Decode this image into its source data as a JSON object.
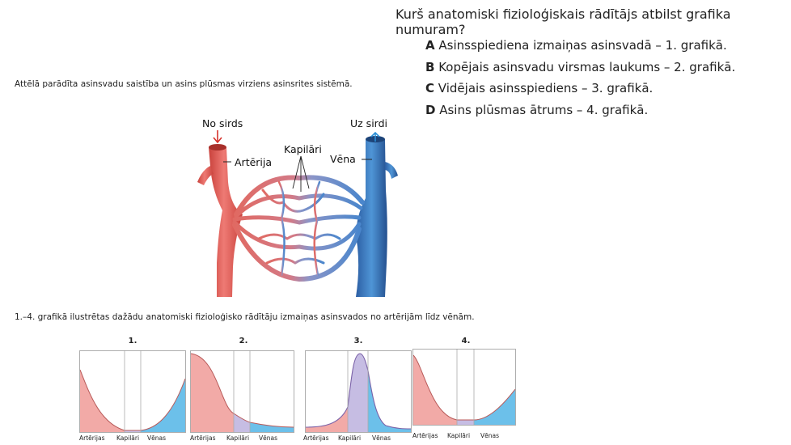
{
  "question": "Kurš anatomiski fizioloģiskais rādītājs atbilst grafika numuram?",
  "answers": [
    {
      "letter": "A",
      "text": "Asinsspiediena izmaiņas asinsvadā – 1. grafikā."
    },
    {
      "letter": "B",
      "text": "Kopējais asinsvadu virsmas laukums – 2. grafikā."
    },
    {
      "letter": "C",
      "text": "Vidējais asinsspiediens – 3. grafikā."
    },
    {
      "letter": "D",
      "text": "Asins plūsmas ātrums – 4. grafikā."
    }
  ],
  "intro": "Attēlā parādīta asinsvadu saistība un asins plūsmas virziens asinsrites sistēmā.",
  "diagram": {
    "from_heart": "No sirds",
    "to_heart": "Uz sirdi",
    "artery": "Artērija",
    "capillaries": "Kapilāri",
    "vein": "Vēna"
  },
  "caption": "1.–4. grafikā ilustrētas dažādu anatomiski fizioloģisko rādītāju izmaiņas asinsvados no artērijām līdz vēnām.",
  "colors": {
    "artery": "#e8827e",
    "artery_fill": "#f2aaa7",
    "capillary_fill": "#c6bde3",
    "vein": "#3f86c9",
    "vein_fill": "#6cc0ea"
  },
  "charts": [
    {
      "number": "1.",
      "labels": [
        "Artērijas",
        "Kapilāri",
        "Vēnas"
      ]
    },
    {
      "number": "2.",
      "labels": [
        "Artērijas",
        "Kapilāri",
        "Vēnas"
      ]
    },
    {
      "number": "3.",
      "labels": [
        "Artērijas",
        "Kapilāri",
        "Vēnas"
      ]
    },
    {
      "number": "4.",
      "labels": [
        "Artērijas",
        "Kapilāri",
        "Vēnas"
      ]
    }
  ]
}
